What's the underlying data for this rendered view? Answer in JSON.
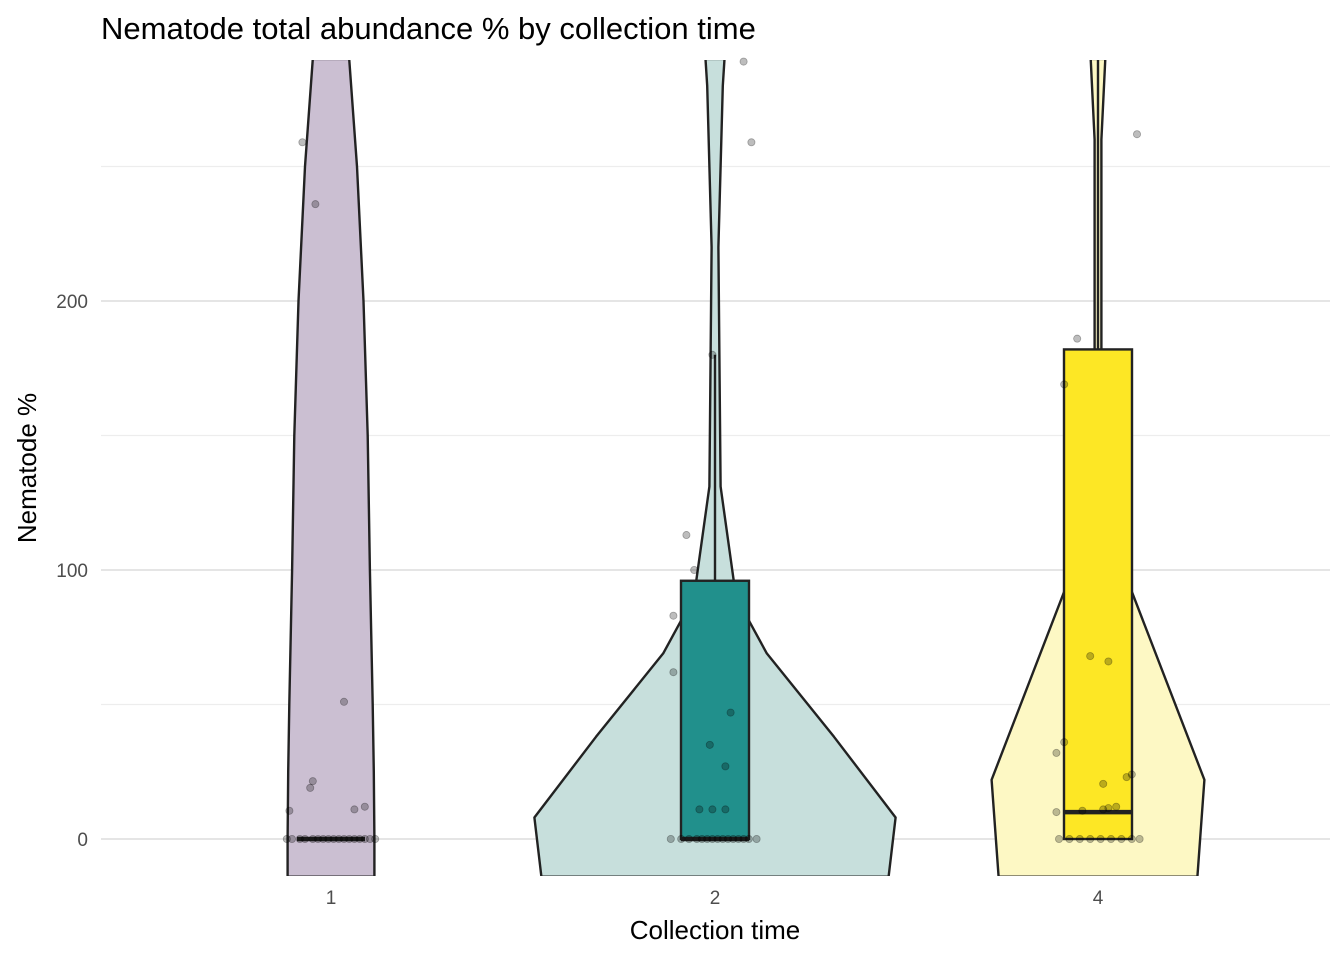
{
  "chart_data": {
    "type": "violin",
    "title": "Nematode total abundance % by collection time",
    "xlabel": "Collection time",
    "ylabel": "Nematode %",
    "categories": [
      "1",
      "2",
      "4"
    ],
    "yticks": [
      0,
      100,
      200
    ],
    "ylim": [
      -14,
      290
    ],
    "grid": true,
    "legend": "none",
    "colors": {
      "1": {
        "violin": "#cbbfd2",
        "box": "#440154",
        "box_opacity": 0.1
      },
      "2": {
        "violin": "#c7dfdc",
        "box": "#21908c",
        "box_opacity": 1.0
      },
      "4": {
        "violin": "#fdf8c4",
        "box": "#fde725",
        "box_opacity": 1.0
      }
    },
    "groups": [
      {
        "name": "1",
        "box": {
          "q1": 0,
          "median": 0,
          "q3": 0,
          "whisker_low": 0,
          "whisker_high": 0
        },
        "violin": [
          [
            -14,
            15.5
          ],
          [
            0,
            15.5
          ],
          [
            25,
            15.3
          ],
          [
            50,
            14.9
          ],
          [
            100,
            13.9
          ],
          [
            150,
            13.1
          ],
          [
            200,
            11.6
          ],
          [
            250,
            9.3
          ],
          [
            290,
            6.5
          ]
        ],
        "points": [
          [
            0,
            -17
          ],
          [
            0,
            -15
          ],
          [
            0,
            -12
          ],
          [
            0,
            -10
          ],
          [
            0,
            -7
          ],
          [
            0,
            -5
          ],
          [
            0,
            -3
          ],
          [
            0,
            -1
          ],
          [
            0,
            1
          ],
          [
            0,
            3
          ],
          [
            0,
            5
          ],
          [
            0,
            7
          ],
          [
            0,
            9
          ],
          [
            0,
            11
          ],
          [
            0,
            13
          ],
          [
            0,
            15
          ],
          [
            0,
            17
          ],
          [
            10.5,
            -16
          ],
          [
            11,
            9
          ],
          [
            12,
            13
          ],
          [
            19,
            -8
          ],
          [
            21.5,
            -7
          ],
          [
            51,
            5
          ],
          [
            236,
            -6
          ],
          [
            259,
            -11
          ]
        ]
      },
      {
        "name": "2",
        "box": {
          "q1": 0,
          "median": 0,
          "q3": 96,
          "whisker_low": 0,
          "whisker_high": 180
        },
        "violin": [
          [
            -14,
            62
          ],
          [
            8,
            64.5
          ],
          [
            38,
            42.5
          ],
          [
            69,
            18.5
          ],
          [
            90,
            7.5
          ],
          [
            131,
            2
          ],
          [
            220,
            1.2
          ],
          [
            280,
            2.8
          ],
          [
            290,
            3.4
          ]
        ],
        "points": [
          [
            0,
            -17
          ],
          [
            0,
            -13
          ],
          [
            0,
            -10
          ],
          [
            0,
            -7
          ],
          [
            0,
            -5
          ],
          [
            0,
            -3
          ],
          [
            0,
            -1
          ],
          [
            0,
            1
          ],
          [
            0,
            3
          ],
          [
            0,
            5
          ],
          [
            0,
            7
          ],
          [
            0,
            9
          ],
          [
            0,
            11
          ],
          [
            0,
            13
          ],
          [
            0,
            16
          ],
          [
            11,
            -6
          ],
          [
            11,
            -1
          ],
          [
            11,
            4
          ],
          [
            27,
            4
          ],
          [
            35,
            -2
          ],
          [
            47,
            6
          ],
          [
            62,
            -16
          ],
          [
            83,
            -16
          ],
          [
            100,
            -8
          ],
          [
            113,
            -11
          ],
          [
            180,
            -1
          ],
          [
            259,
            14
          ],
          [
            289,
            11
          ]
        ]
      },
      {
        "name": "4",
        "box": {
          "q1": 0,
          "median": 10,
          "q3": 182,
          "whisker_low": 0,
          "whisker_high": 290
        },
        "violin": [
          [
            -14,
            35.5
          ],
          [
            22,
            38
          ],
          [
            107,
            6.5
          ],
          [
            182,
            1.2
          ],
          [
            260,
            1.2
          ],
          [
            290,
            2.6
          ]
        ],
        "points": [
          [
            0,
            -15
          ],
          [
            0,
            -11
          ],
          [
            0,
            -7
          ],
          [
            0,
            -3
          ],
          [
            0,
            1
          ],
          [
            0,
            5
          ],
          [
            0,
            9
          ],
          [
            0,
            13
          ],
          [
            0,
            16
          ],
          [
            10,
            -16
          ],
          [
            10.5,
            -6
          ],
          [
            11,
            2
          ],
          [
            11.5,
            4
          ],
          [
            12,
            7
          ],
          [
            23,
            11
          ],
          [
            24,
            13
          ],
          [
            20.5,
            2
          ],
          [
            32,
            -16
          ],
          [
            36,
            -13
          ],
          [
            66,
            4
          ],
          [
            68,
            -3
          ],
          [
            169,
            -13
          ],
          [
            186,
            -8
          ],
          [
            262,
            15
          ]
        ]
      }
    ]
  }
}
